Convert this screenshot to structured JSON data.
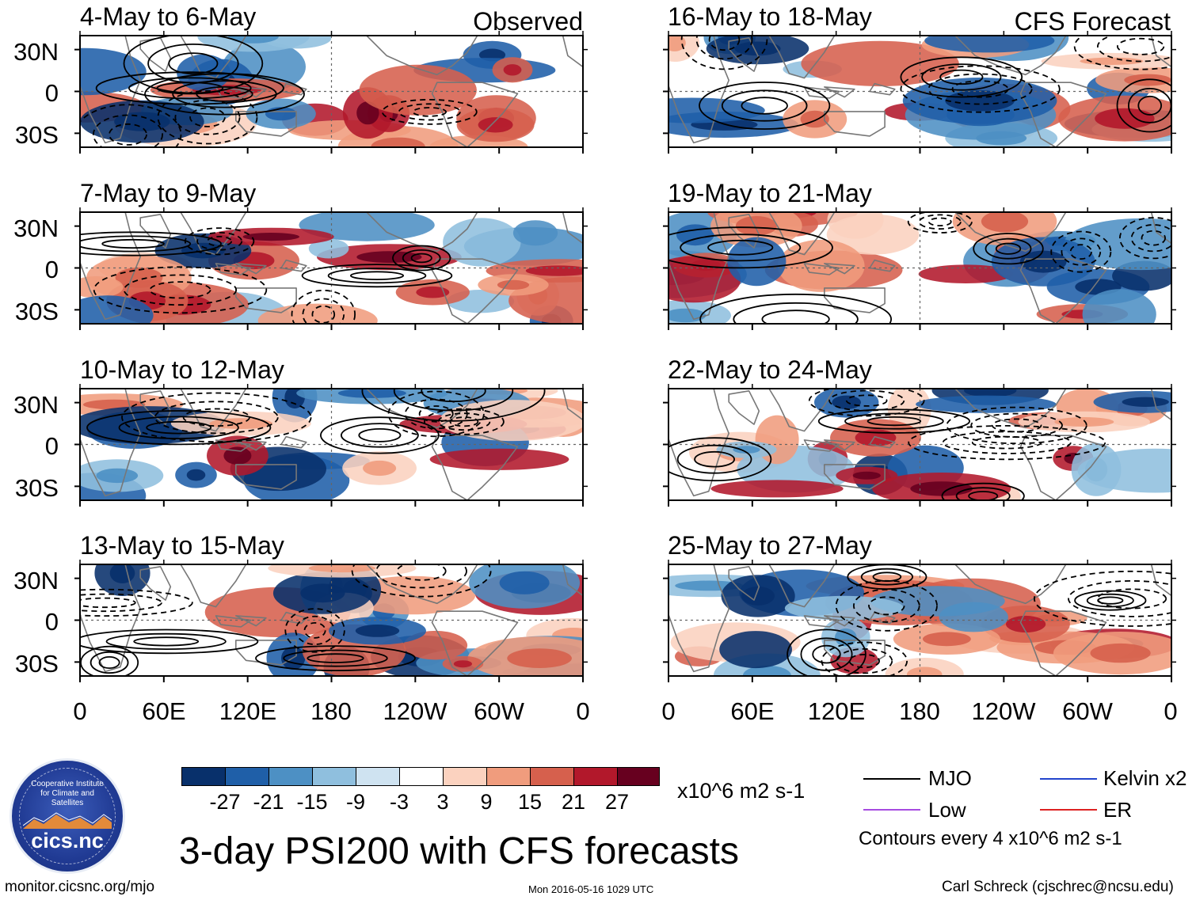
{
  "colors": {
    "palette": [
      "#08306b",
      "#1f5fa8",
      "#4d90c4",
      "#8fbfde",
      "#cfe3f1",
      "#ffffff",
      "#fbd2bf",
      "#f09c7d",
      "#d6604d",
      "#b2182b",
      "#67001f"
    ],
    "mjo": "#000000",
    "kelvin": "#2244cc",
    "low": "#a64be0",
    "er": "#dd2222",
    "grid": "#666666",
    "coast": "#777777"
  },
  "panels": {
    "left_corner": "Observed",
    "right_corner": "CFS Forecast",
    "left": [
      {
        "title": "4-May to 6-May"
      },
      {
        "title": "7-May to 9-May"
      },
      {
        "title": "10-May to 12-May"
      },
      {
        "title": "13-May to 15-May"
      }
    ],
    "right": [
      {
        "title": "16-May to 18-May"
      },
      {
        "title": "19-May to 21-May"
      },
      {
        "title": "22-May to 24-May"
      },
      {
        "title": "25-May to 27-May"
      }
    ]
  },
  "axes": {
    "lat_labels": [
      "30N",
      "0",
      "30S"
    ],
    "lon_labels": [
      "0",
      "60E",
      "120E",
      "180",
      "120W",
      "60W",
      "0"
    ]
  },
  "colorbar": {
    "labels": [
      "-27",
      "-21",
      "-15",
      "-9",
      "-3",
      "3",
      "9",
      "15",
      "21",
      "27"
    ],
    "units": "x10^6 m2 s-1"
  },
  "legend": {
    "mjo": "MJO",
    "kelvin": "Kelvin x2",
    "low": "Low",
    "er": "ER",
    "contours": "Contours every 4 x10^6 m2 s-1"
  },
  "logo": {
    "text": "cics.nc",
    "ring": "Cooperative Institute for Climate and Satellites"
  },
  "title": "3-day PSI200 with CFS forecasts",
  "footer": {
    "url": "monitor.cicsnc.org/mjo",
    "timestamp": "Mon 2016-05-16 1029 UTC",
    "author": "Carl Schreck (cjschrec@ncsu.edu)"
  },
  "chart_data": {
    "type": "heatmap",
    "variable": "200-hPa streamfunction anomaly (PSI200), 3-day means",
    "units": "x10^6 m2 s-1",
    "levels": [
      -27,
      -21,
      -15,
      -9,
      -3,
      3,
      9,
      15,
      21,
      27
    ],
    "lat_range": [
      "40S",
      "40N"
    ],
    "lon_range": [
      "0",
      "360"
    ],
    "contour_interval": 4,
    "series": [
      {
        "name": "MJO",
        "type": "contour"
      },
      {
        "name": "Kelvin x2",
        "type": "contour"
      },
      {
        "name": "Low",
        "type": "contour"
      },
      {
        "name": "ER",
        "type": "contour"
      }
    ]
  }
}
